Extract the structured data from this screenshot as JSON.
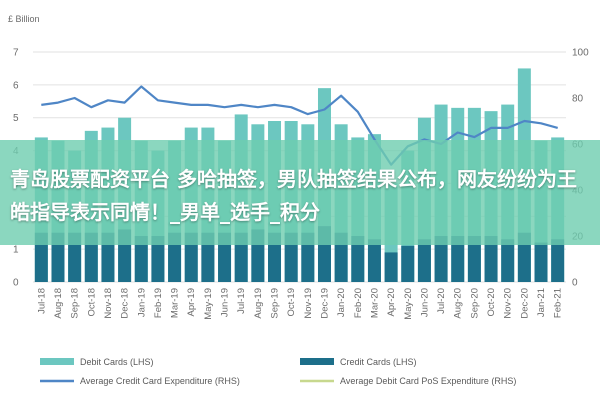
{
  "colors": {
    "debit": "#6cc7c0",
    "credit": "#1d6f8a",
    "avg_credit": "#4f86c6",
    "avg_debit": "#c7d88e",
    "grid": "#e2e2e2",
    "overlay": "#6ecdaf"
  },
  "overlay": {
    "headline": "青岛股票配资平台 多哈抽签，男队抽签结果公布，网友纷纷为王皓指导表示同情！_男单_选手_积分"
  },
  "chart_data": {
    "type": "bar",
    "title": "",
    "left_unit": "£ Billion",
    "ylim_left": [
      0,
      7
    ],
    "yticks_left": [
      "0",
      "1",
      "2",
      "3",
      "4",
      "5",
      "6",
      "7"
    ],
    "ylim_right": [
      0,
      100
    ],
    "yticks_right": [
      "0",
      "20",
      "40",
      "60",
      "80",
      "100"
    ],
    "categories": [
      "Jul-18",
      "Aug-18",
      "Sep-18",
      "Oct-18",
      "Nov-18",
      "Dec-18",
      "Jan-19",
      "Feb-19",
      "Mar-19",
      "Apr-19",
      "May-19",
      "Jun-19",
      "Jul-19",
      "Aug-19",
      "Sep-19",
      "Oct-19",
      "Nov-19",
      "Dec-19",
      "Jan-20",
      "Feb-20",
      "Mar-20",
      "Apr-20",
      "May-20",
      "Jun-20",
      "Jul-20",
      "Aug-20",
      "Sep-20",
      "Oct-20",
      "Nov-20",
      "Dec-20",
      "Jan-21",
      "Feb-21"
    ],
    "x_tick_labels": [
      "Jul-18",
      "Aug-18",
      "Sep-18",
      "Oct-18",
      "Nov-18",
      "Dec-18",
      "Jan-19",
      "Feb-19",
      "Mar-19",
      "Apr-19",
      "May-19",
      "Jun-19",
      "Jul-19",
      "Aug-19",
      "Sep-19",
      "Oct-19",
      "Nov-19",
      "Dec-19",
      "Jan-20",
      "Feb-20",
      "Mar-20",
      "Apr-20",
      "May-20",
      "Jun-20",
      "Jul-20",
      "Aug-20",
      "Sep-20",
      "Oct-20",
      "Nov-20",
      "Dec-20",
      "Jan-21",
      "Feb-21"
    ],
    "series": [
      {
        "name": "Debit Cards (LHS)",
        "axis": "left",
        "kind": "bar",
        "values": [
          4.4,
          4.3,
          4.0,
          4.6,
          4.7,
          5.0,
          4.3,
          4.0,
          4.3,
          4.7,
          4.7,
          4.3,
          5.1,
          4.8,
          4.9,
          4.9,
          4.8,
          5.9,
          4.8,
          4.4,
          4.5,
          3.0,
          4.0,
          5.0,
          5.4,
          5.3,
          5.3,
          5.2,
          5.4,
          6.5,
          4.3,
          4.4
        ]
      },
      {
        "name": "Credit Cards (LHS)",
        "axis": "left",
        "kind": "bar",
        "values": [
          1.5,
          1.5,
          1.5,
          1.5,
          1.5,
          1.6,
          1.4,
          1.4,
          1.5,
          1.5,
          1.5,
          1.5,
          1.5,
          1.6,
          1.5,
          1.5,
          1.5,
          1.7,
          1.5,
          1.4,
          1.3,
          0.9,
          1.1,
          1.3,
          1.4,
          1.4,
          1.4,
          1.4,
          1.3,
          1.5,
          1.2,
          1.3
        ]
      },
      {
        "name": "Average Credit Card Expenditure (RHS)",
        "axis": "right",
        "kind": "line",
        "values": [
          77,
          78,
          80,
          76,
          79,
          78,
          85,
          79,
          78,
          77,
          77,
          76,
          77,
          76,
          77,
          76,
          73,
          75,
          81,
          74,
          62,
          51,
          59,
          62,
          60,
          65,
          63,
          67,
          67,
          70,
          69,
          67
        ]
      },
      {
        "name": "Average Debit Card PoS Expenditure (RHS)",
        "axis": "right",
        "kind": "line",
        "values": [
          null,
          null,
          null,
          null,
          null,
          null,
          null,
          null,
          null,
          null,
          null,
          null,
          null,
          null,
          null,
          null,
          null,
          null,
          null,
          null,
          null,
          null,
          null,
          null,
          null,
          null,
          null,
          null,
          null,
          null,
          null,
          null
        ]
      }
    ],
    "legend_position": "bottom",
    "grid": true
  }
}
